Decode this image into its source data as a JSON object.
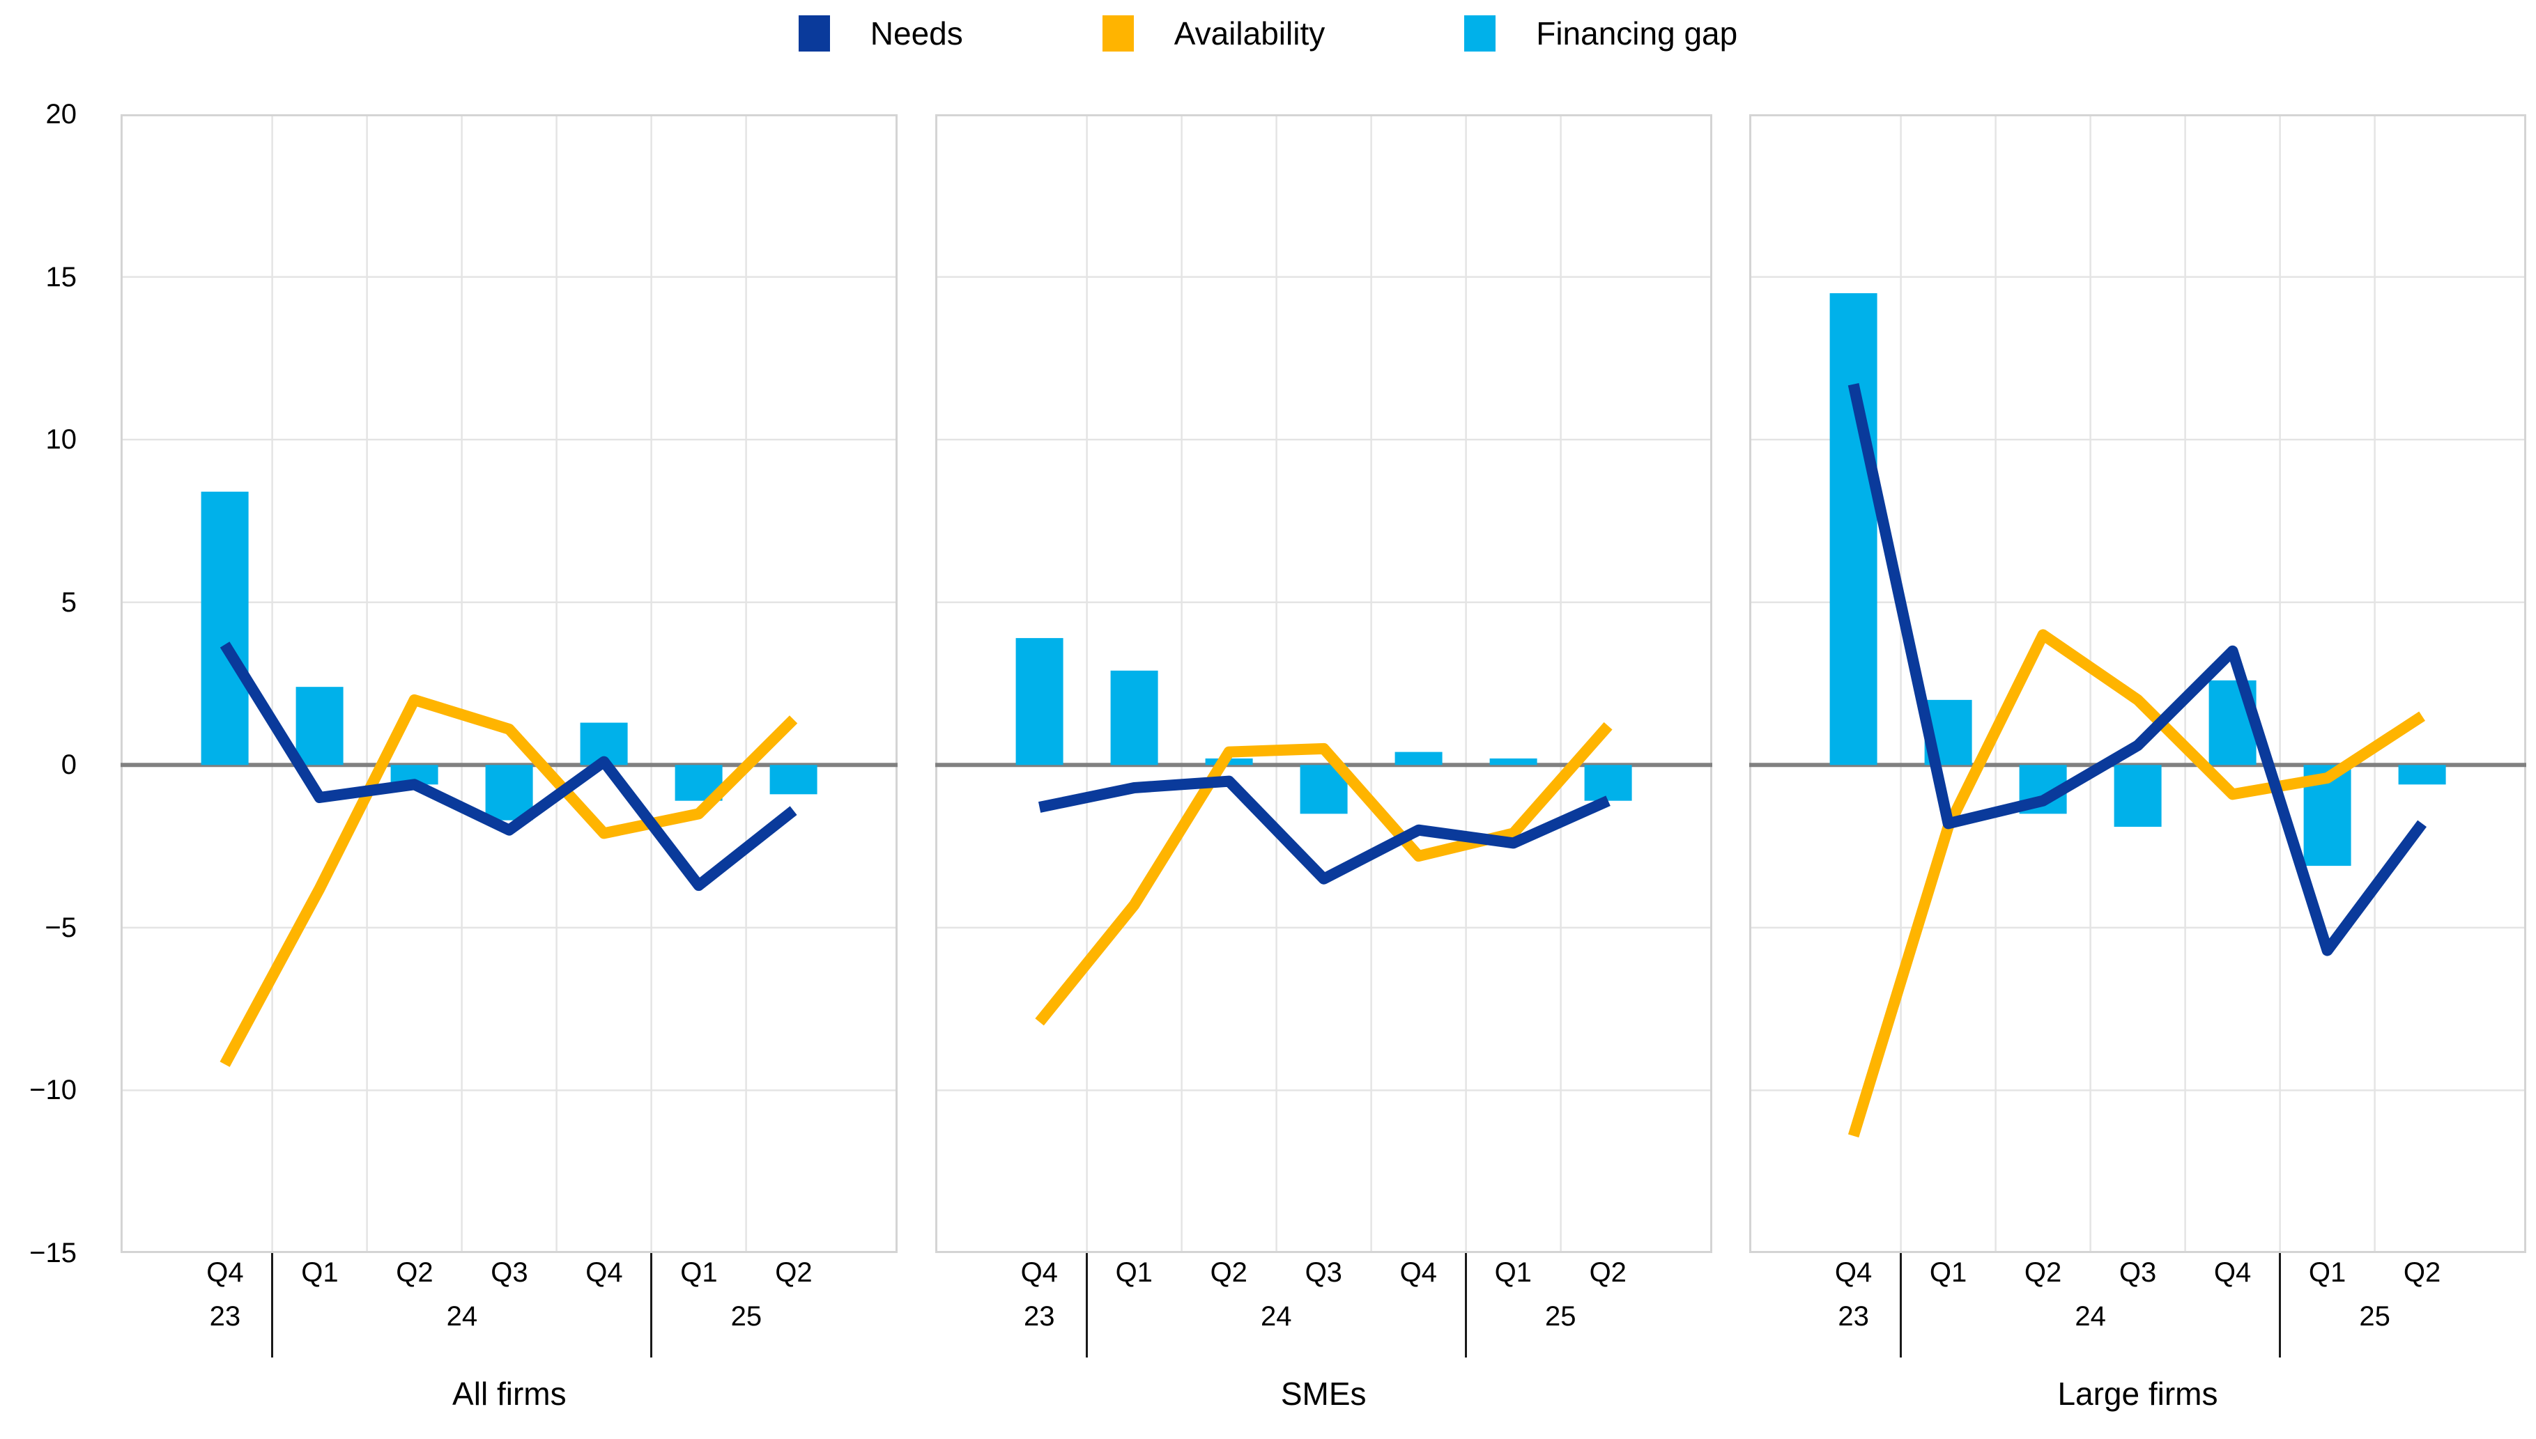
{
  "legend": [
    {
      "label": "Needs",
      "color": "#0a3a9b"
    },
    {
      "label": "Availability",
      "color": "#ffb400"
    },
    {
      "label": "Financing gap",
      "color": "#00b1ea"
    }
  ],
  "colors": {
    "needs_line": "#0a3a9b",
    "availability_line": "#ffb400",
    "financing_gap_bar": "#00b1ea",
    "zero_line": "#808080",
    "gridline": "#e4e4e4",
    "frame": "#d4d4d4",
    "separator": "#1a1a1a",
    "text": "#000000"
  },
  "y_axis": {
    "tick_labels": [
      "20",
      "15",
      "10",
      "5",
      "0",
      "−5",
      "−10",
      "−15"
    ],
    "tick_values": [
      20,
      15,
      10,
      5,
      0,
      -5,
      -10,
      -15
    ],
    "ylim": [
      -15,
      20
    ],
    "grid": "on"
  },
  "x_axis": {
    "quarters": [
      "Q4",
      "Q1",
      "Q2",
      "Q3",
      "Q4",
      "Q1",
      "Q2"
    ],
    "year_groups": [
      {
        "label": "23",
        "start": 0,
        "end": 0
      },
      {
        "label": "24",
        "start": 1,
        "end": 4
      },
      {
        "label": "25",
        "start": 5,
        "end": 6
      }
    ]
  },
  "chart_data": [
    {
      "type": "bar",
      "title": "All firms",
      "categories": [
        "Q4 23",
        "Q1 24",
        "Q2 24",
        "Q3 24",
        "Q4 24",
        "Q1 25",
        "Q2 25"
      ],
      "ylim": [
        -15,
        20
      ],
      "legend_position": "top",
      "series": [
        {
          "name": "Needs",
          "type": "line",
          "color": "#0a3a9b",
          "values": [
            3.7,
            -1.0,
            -0.6,
            -2.0,
            0.1,
            -3.7,
            -1.4
          ]
        },
        {
          "name": "Availability",
          "type": "line",
          "color": "#ffb400",
          "values": [
            -9.2,
            -3.8,
            2.0,
            1.1,
            -2.1,
            -1.5,
            1.4
          ]
        },
        {
          "name": "Financing gap",
          "type": "bar",
          "color": "#00b1ea",
          "values": [
            8.4,
            2.4,
            -0.6,
            -1.7,
            1.3,
            -1.1,
            -0.9
          ]
        }
      ]
    },
    {
      "type": "bar",
      "title": "SMEs",
      "categories": [
        "Q4 23",
        "Q1 24",
        "Q2 24",
        "Q3 24",
        "Q4 24",
        "Q1 25",
        "Q2 25"
      ],
      "ylim": [
        -15,
        20
      ],
      "legend_position": "top",
      "series": [
        {
          "name": "Needs",
          "type": "line",
          "color": "#0a3a9b",
          "values": [
            -1.3,
            -0.7,
            -0.5,
            -3.5,
            -2.0,
            -2.4,
            -1.1
          ]
        },
        {
          "name": "Availability",
          "type": "line",
          "color": "#ffb400",
          "values": [
            -7.9,
            -4.3,
            0.4,
            0.5,
            -2.8,
            -2.1,
            1.2
          ]
        },
        {
          "name": "Financing gap",
          "type": "bar",
          "color": "#00b1ea",
          "values": [
            3.9,
            2.9,
            0.2,
            -1.5,
            0.4,
            0.2,
            -1.1
          ]
        }
      ]
    },
    {
      "type": "bar",
      "title": "Large firms",
      "categories": [
        "Q4 23",
        "Q1 24",
        "Q2 24",
        "Q3 24",
        "Q4 24",
        "Q1 25",
        "Q2 25"
      ],
      "ylim": [
        -15,
        20
      ],
      "legend_position": "top",
      "series": [
        {
          "name": "Needs",
          "type": "line",
          "color": "#0a3a9b",
          "values": [
            11.7,
            -1.8,
            -1.1,
            0.6,
            3.5,
            -5.7,
            -1.8
          ]
        },
        {
          "name": "Availability",
          "type": "line",
          "color": "#ffb400",
          "values": [
            -11.4,
            -1.9,
            4.0,
            2.0,
            -0.9,
            -0.4,
            1.5
          ]
        },
        {
          "name": "Financing gap",
          "type": "bar",
          "color": "#00b1ea",
          "values": [
            14.5,
            2.0,
            -1.5,
            -1.9,
            2.6,
            -3.1,
            -0.6
          ]
        }
      ]
    }
  ]
}
